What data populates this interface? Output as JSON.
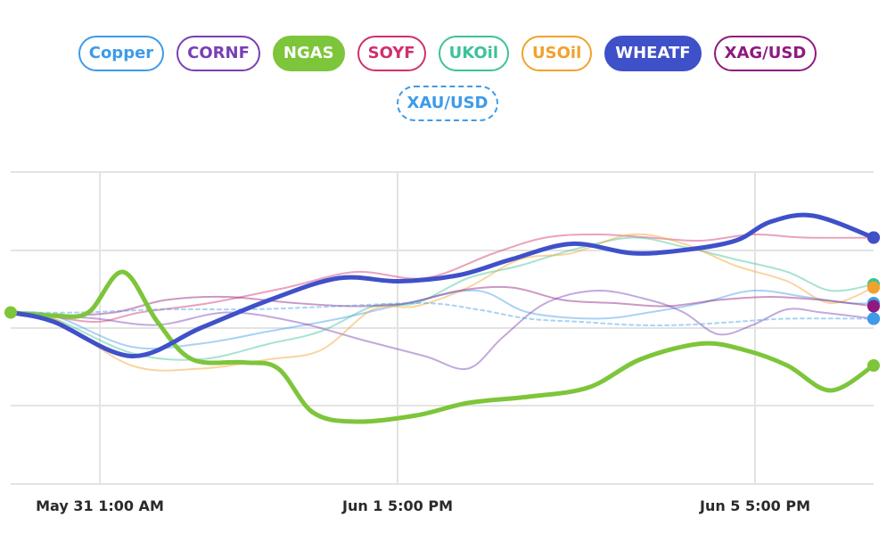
{
  "chart_data": {
    "type": "line",
    "title": "",
    "xlabel": "",
    "ylabel": "",
    "grid": true,
    "legend_position": "top",
    "x_ticks": [
      "May 31 1:00 AM",
      "Jun 1 5:00 PM",
      "Jun 5 5:00 PM"
    ],
    "y_range": [
      0,
      100
    ],
    "series": [
      {
        "name": "Copper",
        "color": "#3d9be9",
        "style": "solid",
        "active": false,
        "points": [
          [
            0,
            55
          ],
          [
            0.05,
            54
          ],
          [
            0.14,
            44
          ],
          [
            0.22,
            45
          ],
          [
            0.3,
            49
          ],
          [
            0.38,
            53
          ],
          [
            0.46,
            58
          ],
          [
            0.54,
            62
          ],
          [
            0.6,
            55
          ],
          [
            0.68,
            53
          ],
          [
            0.74,
            55
          ],
          [
            0.8,
            58
          ],
          [
            0.86,
            62
          ],
          [
            0.92,
            60
          ],
          [
            0.97,
            58
          ],
          [
            1,
            58
          ]
        ]
      },
      {
        "name": "CORNF",
        "color": "#7a3fb5",
        "style": "solid",
        "active": false,
        "points": [
          [
            0,
            55
          ],
          [
            0.05,
            54
          ],
          [
            0.1,
            53
          ],
          [
            0.17,
            51
          ],
          [
            0.25,
            55
          ],
          [
            0.33,
            52
          ],
          [
            0.41,
            46
          ],
          [
            0.48,
            41
          ],
          [
            0.53,
            37
          ],
          [
            0.57,
            47
          ],
          [
            0.62,
            58
          ],
          [
            0.68,
            62
          ],
          [
            0.74,
            59
          ],
          [
            0.78,
            55
          ],
          [
            0.82,
            48
          ],
          [
            0.86,
            51
          ],
          [
            0.9,
            56
          ],
          [
            0.94,
            55
          ],
          [
            1,
            53
          ]
        ]
      },
      {
        "name": "NGAS",
        "color": "#7dc53a",
        "style": "solid",
        "active": true,
        "points": [
          [
            0,
            55
          ],
          [
            0.05,
            54
          ],
          [
            0.09,
            55
          ],
          [
            0.13,
            68
          ],
          [
            0.17,
            52
          ],
          [
            0.21,
            40
          ],
          [
            0.27,
            39
          ],
          [
            0.31,
            37
          ],
          [
            0.35,
            23
          ],
          [
            0.4,
            20
          ],
          [
            0.47,
            22
          ],
          [
            0.53,
            26
          ],
          [
            0.6,
            28
          ],
          [
            0.67,
            31
          ],
          [
            0.73,
            40
          ],
          [
            0.8,
            45
          ],
          [
            0.85,
            43
          ],
          [
            0.9,
            38
          ],
          [
            0.95,
            30
          ],
          [
            1,
            38
          ]
        ]
      },
      {
        "name": "SOYF",
        "color": "#d0306e",
        "style": "solid",
        "active": false,
        "points": [
          [
            0,
            55
          ],
          [
            0.04,
            54
          ],
          [
            0.1,
            52
          ],
          [
            0.15,
            55
          ],
          [
            0.23,
            58
          ],
          [
            0.32,
            63
          ],
          [
            0.4,
            68
          ],
          [
            0.48,
            66
          ],
          [
            0.56,
            74
          ],
          [
            0.62,
            79
          ],
          [
            0.68,
            80
          ],
          [
            0.74,
            79
          ],
          [
            0.8,
            78
          ],
          [
            0.86,
            80
          ],
          [
            0.92,
            79
          ],
          [
            1,
            79
          ]
        ]
      },
      {
        "name": "UKOil",
        "color": "#3cc29a",
        "style": "solid",
        "active": false,
        "points": [
          [
            0,
            55
          ],
          [
            0.05,
            53
          ],
          [
            0.14,
            42
          ],
          [
            0.22,
            40
          ],
          [
            0.3,
            45
          ],
          [
            0.36,
            49
          ],
          [
            0.42,
            57
          ],
          [
            0.47,
            58
          ],
          [
            0.53,
            66
          ],
          [
            0.59,
            70
          ],
          [
            0.65,
            75
          ],
          [
            0.72,
            79
          ],
          [
            0.78,
            76
          ],
          [
            0.84,
            72
          ],
          [
            0.9,
            68
          ],
          [
            0.95,
            62
          ],
          [
            1,
            64
          ]
        ]
      },
      {
        "name": "USOil",
        "color": "#f2a12c",
        "style": "solid",
        "active": false,
        "points": [
          [
            0,
            55
          ],
          [
            0.05,
            53
          ],
          [
            0.14,
            38
          ],
          [
            0.22,
            37
          ],
          [
            0.3,
            40
          ],
          [
            0.36,
            43
          ],
          [
            0.42,
            56
          ],
          [
            0.47,
            57
          ],
          [
            0.53,
            63
          ],
          [
            0.59,
            72
          ],
          [
            0.65,
            74
          ],
          [
            0.72,
            80
          ],
          [
            0.78,
            77
          ],
          [
            0.84,
            70
          ],
          [
            0.9,
            65
          ],
          [
            0.95,
            58
          ],
          [
            1,
            63
          ]
        ]
      },
      {
        "name": "WHEATF",
        "color": "#3f51c9",
        "style": "solid",
        "active": true,
        "points": [
          [
            0,
            55
          ],
          [
            0.05,
            52
          ],
          [
            0.14,
            41
          ],
          [
            0.22,
            50
          ],
          [
            0.3,
            59
          ],
          [
            0.38,
            66
          ],
          [
            0.45,
            65
          ],
          [
            0.52,
            67
          ],
          [
            0.58,
            72
          ],
          [
            0.65,
            77
          ],
          [
            0.72,
            74
          ],
          [
            0.78,
            75
          ],
          [
            0.84,
            78
          ],
          [
            0.88,
            84
          ],
          [
            0.93,
            86
          ],
          [
            1,
            79
          ]
        ]
      },
      {
        "name": "XAG/USD",
        "color": "#8f1a7e",
        "style": "solid",
        "active": false,
        "points": [
          [
            0,
            55
          ],
          [
            0.05,
            54
          ],
          [
            0.12,
            55
          ],
          [
            0.18,
            59
          ],
          [
            0.25,
            60
          ],
          [
            0.33,
            58
          ],
          [
            0.4,
            57
          ],
          [
            0.46,
            58
          ],
          [
            0.52,
            62
          ],
          [
            0.58,
            63
          ],
          [
            0.64,
            59
          ],
          [
            0.7,
            58
          ],
          [
            0.76,
            57
          ],
          [
            0.82,
            59
          ],
          [
            0.88,
            60
          ],
          [
            0.94,
            59
          ],
          [
            1,
            57
          ]
        ]
      },
      {
        "name": "XAU/USD",
        "color": "#3d9be9",
        "style": "dashed",
        "active": false,
        "points": [
          [
            0,
            55
          ],
          [
            0.08,
            55
          ],
          [
            0.18,
            56
          ],
          [
            0.28,
            56
          ],
          [
            0.38,
            57
          ],
          [
            0.48,
            58
          ],
          [
            0.54,
            56
          ],
          [
            0.6,
            53
          ],
          [
            0.66,
            52
          ],
          [
            0.72,
            51
          ],
          [
            0.78,
            51
          ],
          [
            0.84,
            52
          ],
          [
            0.9,
            53
          ],
          [
            1,
            53
          ]
        ]
      }
    ]
  }
}
